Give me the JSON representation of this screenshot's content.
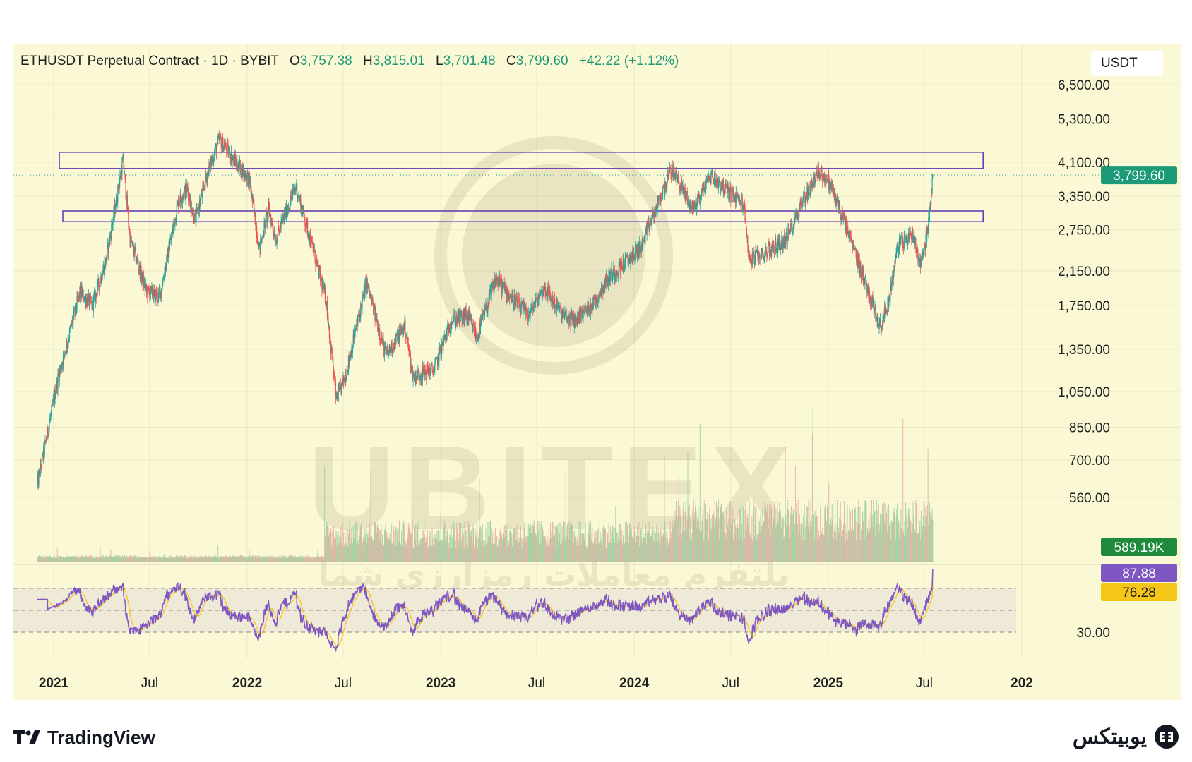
{
  "header": {
    "symbol": "ETHUSDT Perpetual Contract · 1D · BYBIT",
    "open_label": "O",
    "open": "3,757.38",
    "high_label": "H",
    "high": "3,815.01",
    "low_label": "L",
    "low": "3,701.48",
    "close_label": "C",
    "close": "3,799.60",
    "change": "+42.22 (+1.12%)"
  },
  "unit": "USDT",
  "badges": {
    "last_price": "3,799.60",
    "volume": "589.19K",
    "rsi": "87.88",
    "rsi_ma": "76.28"
  },
  "watermark": {
    "brand": "UBITEX",
    "tagline": "پلتفرم معاملات رمزارزی شما"
  },
  "footer": {
    "left_brand": "TradingView",
    "right_brand": "یوبیتکس"
  },
  "colors": {
    "background": "#fbf8d6",
    "up": "#26a69a",
    "down": "#ef5350",
    "zone": "#6a3fb5",
    "rsi": "#7e57c2",
    "rsi_ma": "#f5c518",
    "price_badge": "#1c9a78",
    "volume_badge": "#1e8a3c"
  },
  "chart_data": {
    "type": "candlestick",
    "scale": "log",
    "ylim": [
      500,
      7500
    ],
    "y_ticks": [
      "6,500.00",
      "5,300.00",
      "4,100.00",
      "3,350.00",
      "2,750.00",
      "2,150.00",
      "1,750.00",
      "1,350.00",
      "1,050.00",
      "850.00",
      "700.00",
      "560.00"
    ],
    "y_tick_values": [
      6500,
      5300,
      4100,
      3350,
      2750,
      2150,
      1750,
      1350,
      1050,
      850,
      700,
      560
    ],
    "x_ticks": [
      {
        "label": "2021",
        "date": "2021-01-01",
        "bold": true
      },
      {
        "label": "Jul",
        "date": "2021-07-01",
        "bold": false
      },
      {
        "label": "2022",
        "date": "2022-01-01",
        "bold": true
      },
      {
        "label": "Jul",
        "date": "2022-07-01",
        "bold": false
      },
      {
        "label": "2023",
        "date": "2023-01-01",
        "bold": true
      },
      {
        "label": "Jul",
        "date": "2023-07-01",
        "bold": false
      },
      {
        "label": "2024",
        "date": "2024-01-01",
        "bold": true
      },
      {
        "label": "Jul",
        "date": "2024-07-01",
        "bold": false
      },
      {
        "label": "2025",
        "date": "2025-01-01",
        "bold": true
      },
      {
        "label": "Jul",
        "date": "2025-07-01",
        "bold": false
      },
      {
        "label": "202",
        "date": "2026-01-01",
        "bold": true
      }
    ],
    "price_path": [
      [
        "2020-12-01",
        600
      ],
      [
        "2021-01-10",
        1150
      ],
      [
        "2021-02-20",
        1900
      ],
      [
        "2021-03-15",
        1750
      ],
      [
        "2021-04-10",
        2300
      ],
      [
        "2021-05-12",
        4150
      ],
      [
        "2021-05-25",
        2600
      ],
      [
        "2021-06-25",
        1900
      ],
      [
        "2021-07-20",
        1850
      ],
      [
        "2021-08-25",
        3300
      ],
      [
        "2021-09-10",
        3500
      ],
      [
        "2021-09-25",
        2900
      ],
      [
        "2021-10-20",
        3950
      ],
      [
        "2021-11-10",
        4700
      ],
      [
        "2021-12-05",
        4200
      ],
      [
        "2022-01-05",
        3700
      ],
      [
        "2022-01-24",
        2450
      ],
      [
        "2022-02-10",
        3100
      ],
      [
        "2022-02-24",
        2600
      ],
      [
        "2022-04-03",
        3550
      ],
      [
        "2022-05-10",
        2300
      ],
      [
        "2022-05-30",
        1800
      ],
      [
        "2022-06-18",
        1000
      ],
      [
        "2022-07-05",
        1150
      ],
      [
        "2022-08-14",
        2000
      ],
      [
        "2022-09-20",
        1300
      ],
      [
        "2022-10-25",
        1550
      ],
      [
        "2022-11-10",
        1150
      ],
      [
        "2022-12-20",
        1200
      ],
      [
        "2023-01-20",
        1600
      ],
      [
        "2023-02-20",
        1650
      ],
      [
        "2023-03-10",
        1450
      ],
      [
        "2023-04-15",
        2050
      ],
      [
        "2023-05-20",
        1800
      ],
      [
        "2023-06-15",
        1650
      ],
      [
        "2023-07-15",
        1950
      ],
      [
        "2023-08-20",
        1650
      ],
      [
        "2023-09-10",
        1600
      ],
      [
        "2023-10-20",
        1800
      ],
      [
        "2023-11-10",
        2050
      ],
      [
        "2023-12-20",
        2300
      ],
      [
        "2024-01-15",
        2500
      ],
      [
        "2024-03-12",
        3950
      ],
      [
        "2024-04-20",
        3100
      ],
      [
        "2024-05-25",
        3800
      ],
      [
        "2024-06-20",
        3500
      ],
      [
        "2024-07-25",
        3200
      ],
      [
        "2024-08-05",
        2300
      ],
      [
        "2024-09-05",
        2400
      ],
      [
        "2024-10-15",
        2600
      ],
      [
        "2024-11-10",
        3200
      ],
      [
        "2024-12-15",
        3900
      ],
      [
        "2025-01-05",
        3600
      ],
      [
        "2025-02-03",
        2800
      ],
      [
        "2025-02-25",
        2300
      ],
      [
        "2025-04-09",
        1550
      ],
      [
        "2025-04-25",
        1800
      ],
      [
        "2025-05-12",
        2500
      ],
      [
        "2025-06-10",
        2700
      ],
      [
        "2025-06-22",
        2250
      ],
      [
        "2025-07-01",
        2450
      ],
      [
        "2025-07-10",
        2900
      ],
      [
        "2025-07-17",
        3800
      ]
    ],
    "zones": [
      {
        "from": "2021-01-01",
        "to": "2025-10-20",
        "low": 3950,
        "high": 4350
      },
      {
        "from": "2021-01-01",
        "to": "2025-10-20",
        "low": 2880,
        "high": 3070
      }
    ],
    "last_price": 3799.6,
    "volume": {
      "last": "589.19K"
    },
    "rsi": {
      "levels": [
        70,
        50,
        30
      ],
      "level_labels": [
        "30.00"
      ],
      "last": 87.88,
      "ma_last": 76.28
    }
  }
}
